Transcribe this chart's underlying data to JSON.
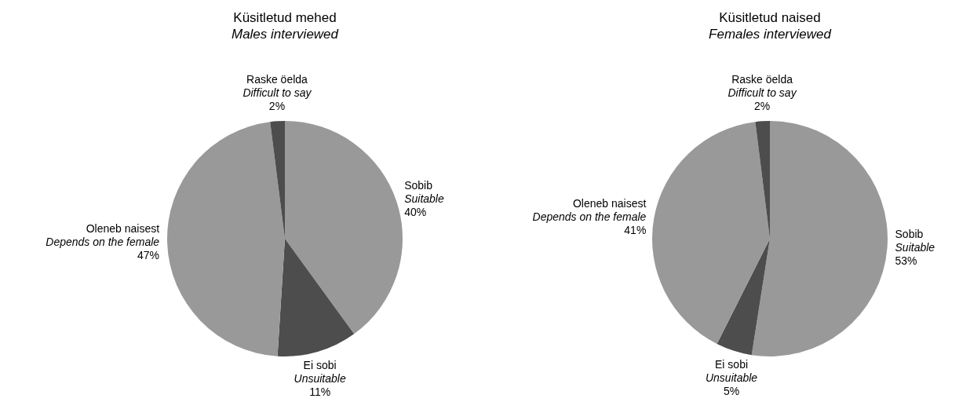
{
  "chart_data": [
    {
      "type": "pie",
      "title": "Küsitletud mehed\nMales interviewed",
      "categories": [
        "Sobib\nSuitable",
        "Ei sobi\nUnsuitable",
        "Oleneb naisest\nDepends on the female",
        "Raske öelda\nDifficult to say"
      ],
      "values": [
        40,
        11,
        47,
        2
      ],
      "value_labels": [
        "40%",
        "11%",
        "47%",
        "2%"
      ],
      "colors": [
        "#999999",
        "#4d4d4d",
        "#999999",
        "#4d4d4d"
      ],
      "legend": false
    },
    {
      "type": "pie",
      "title": "Küsitletud naised\nFemales interviewed",
      "categories": [
        "Sobib\nSuitable",
        "Ei sobi\nUnsuitable",
        "Oleneb naisest\nDepends on the female",
        "Raske öelda\nDifficult to say"
      ],
      "values": [
        53,
        5,
        41,
        2
      ],
      "value_labels": [
        "53%",
        "5%",
        "41%",
        "2%"
      ],
      "colors": [
        "#999999",
        "#4d4d4d",
        "#999999",
        "#4d4d4d"
      ],
      "legend": false
    }
  ]
}
